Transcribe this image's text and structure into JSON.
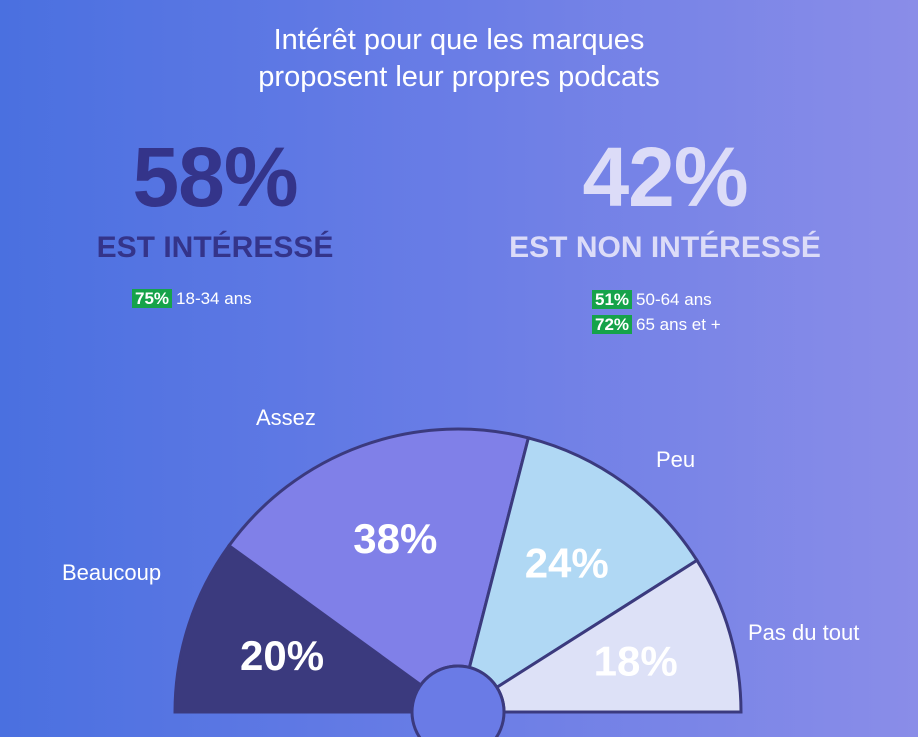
{
  "title_lines": [
    "Intérêt pour que les marques",
    "proposent leur propres podcats"
  ],
  "left": {
    "pct": "58%",
    "label": "EST INTÉRESSÉ",
    "details": [
      {
        "tag": "75%",
        "text": "18-34 ans"
      }
    ]
  },
  "right": {
    "pct": "42%",
    "label": "EST NON INTÉRESSÉ",
    "details": [
      {
        "tag": "51%",
        "text": "50-64 ans"
      },
      {
        "tag": "72%",
        "text": "65 ans et +"
      }
    ]
  },
  "chart_data": {
    "type": "pie",
    "variant": "semicircle-gauge",
    "categories": [
      "Beaucoup",
      "Assez",
      "Peu",
      "Pas du tout"
    ],
    "values": [
      20,
      38,
      24,
      18
    ],
    "value_labels": [
      "20%",
      "38%",
      "24%",
      "18%"
    ],
    "colors": [
      "#3b3a7e",
      "#8080e8",
      "#b0d8f4",
      "#dde1f7"
    ],
    "label_colors": [
      "#ffffff",
      "#ffffff",
      "#ffffff",
      "#ffffff"
    ],
    "stroke_color": "#3b3a7e",
    "hub_color": "#6a7be6"
  }
}
